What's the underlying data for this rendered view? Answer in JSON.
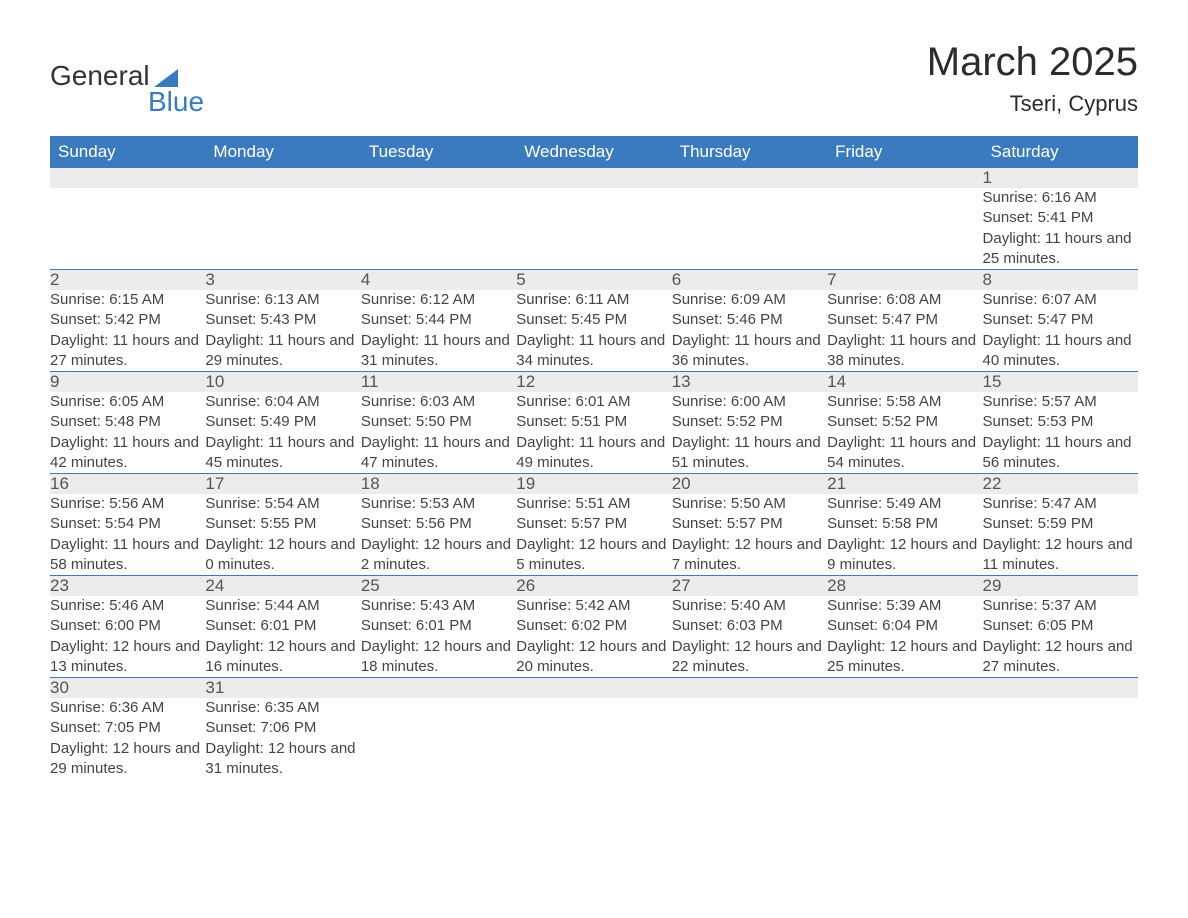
{
  "brand": {
    "word1": "General",
    "word2": "Blue",
    "accent_color": "#3a7bbf"
  },
  "title": "March 2025",
  "location": "Tseri, Cyprus",
  "day_headers": [
    "Sunday",
    "Monday",
    "Tuesday",
    "Wednesday",
    "Thursday",
    "Friday",
    "Saturday"
  ],
  "colors": {
    "header_bg": "#3a7bbf",
    "header_text": "#ffffff",
    "daynum_bg": "#ececec",
    "daynum_text": "#555555",
    "body_text": "#444444",
    "row_divider": "#3a7bbf",
    "page_bg": "#ffffff"
  },
  "typography": {
    "title_fontsize": 40,
    "location_fontsize": 22,
    "header_fontsize": 17,
    "daynum_fontsize": 17,
    "detail_fontsize": 15,
    "font_family": "Arial"
  },
  "weeks": [
    [
      null,
      null,
      null,
      null,
      null,
      null,
      {
        "n": "1",
        "sunrise": "6:16 AM",
        "sunset": "5:41 PM",
        "daylight": "11 hours and 25 minutes."
      }
    ],
    [
      {
        "n": "2",
        "sunrise": "6:15 AM",
        "sunset": "5:42 PM",
        "daylight": "11 hours and 27 minutes."
      },
      {
        "n": "3",
        "sunrise": "6:13 AM",
        "sunset": "5:43 PM",
        "daylight": "11 hours and 29 minutes."
      },
      {
        "n": "4",
        "sunrise": "6:12 AM",
        "sunset": "5:44 PM",
        "daylight": "11 hours and 31 minutes."
      },
      {
        "n": "5",
        "sunrise": "6:11 AM",
        "sunset": "5:45 PM",
        "daylight": "11 hours and 34 minutes."
      },
      {
        "n": "6",
        "sunrise": "6:09 AM",
        "sunset": "5:46 PM",
        "daylight": "11 hours and 36 minutes."
      },
      {
        "n": "7",
        "sunrise": "6:08 AM",
        "sunset": "5:47 PM",
        "daylight": "11 hours and 38 minutes."
      },
      {
        "n": "8",
        "sunrise": "6:07 AM",
        "sunset": "5:47 PM",
        "daylight": "11 hours and 40 minutes."
      }
    ],
    [
      {
        "n": "9",
        "sunrise": "6:05 AM",
        "sunset": "5:48 PM",
        "daylight": "11 hours and 42 minutes."
      },
      {
        "n": "10",
        "sunrise": "6:04 AM",
        "sunset": "5:49 PM",
        "daylight": "11 hours and 45 minutes."
      },
      {
        "n": "11",
        "sunrise": "6:03 AM",
        "sunset": "5:50 PM",
        "daylight": "11 hours and 47 minutes."
      },
      {
        "n": "12",
        "sunrise": "6:01 AM",
        "sunset": "5:51 PM",
        "daylight": "11 hours and 49 minutes."
      },
      {
        "n": "13",
        "sunrise": "6:00 AM",
        "sunset": "5:52 PM",
        "daylight": "11 hours and 51 minutes."
      },
      {
        "n": "14",
        "sunrise": "5:58 AM",
        "sunset": "5:52 PM",
        "daylight": "11 hours and 54 minutes."
      },
      {
        "n": "15",
        "sunrise": "5:57 AM",
        "sunset": "5:53 PM",
        "daylight": "11 hours and 56 minutes."
      }
    ],
    [
      {
        "n": "16",
        "sunrise": "5:56 AM",
        "sunset": "5:54 PM",
        "daylight": "11 hours and 58 minutes."
      },
      {
        "n": "17",
        "sunrise": "5:54 AM",
        "sunset": "5:55 PM",
        "daylight": "12 hours and 0 minutes."
      },
      {
        "n": "18",
        "sunrise": "5:53 AM",
        "sunset": "5:56 PM",
        "daylight": "12 hours and 2 minutes."
      },
      {
        "n": "19",
        "sunrise": "5:51 AM",
        "sunset": "5:57 PM",
        "daylight": "12 hours and 5 minutes."
      },
      {
        "n": "20",
        "sunrise": "5:50 AM",
        "sunset": "5:57 PM",
        "daylight": "12 hours and 7 minutes."
      },
      {
        "n": "21",
        "sunrise": "5:49 AM",
        "sunset": "5:58 PM",
        "daylight": "12 hours and 9 minutes."
      },
      {
        "n": "22",
        "sunrise": "5:47 AM",
        "sunset": "5:59 PM",
        "daylight": "12 hours and 11 minutes."
      }
    ],
    [
      {
        "n": "23",
        "sunrise": "5:46 AM",
        "sunset": "6:00 PM",
        "daylight": "12 hours and 13 minutes."
      },
      {
        "n": "24",
        "sunrise": "5:44 AM",
        "sunset": "6:01 PM",
        "daylight": "12 hours and 16 minutes."
      },
      {
        "n": "25",
        "sunrise": "5:43 AM",
        "sunset": "6:01 PM",
        "daylight": "12 hours and 18 minutes."
      },
      {
        "n": "26",
        "sunrise": "5:42 AM",
        "sunset": "6:02 PM",
        "daylight": "12 hours and 20 minutes."
      },
      {
        "n": "27",
        "sunrise": "5:40 AM",
        "sunset": "6:03 PM",
        "daylight": "12 hours and 22 minutes."
      },
      {
        "n": "28",
        "sunrise": "5:39 AM",
        "sunset": "6:04 PM",
        "daylight": "12 hours and 25 minutes."
      },
      {
        "n": "29",
        "sunrise": "5:37 AM",
        "sunset": "6:05 PM",
        "daylight": "12 hours and 27 minutes."
      }
    ],
    [
      {
        "n": "30",
        "sunrise": "6:36 AM",
        "sunset": "7:05 PM",
        "daylight": "12 hours and 29 minutes."
      },
      {
        "n": "31",
        "sunrise": "6:35 AM",
        "sunset": "7:06 PM",
        "daylight": "12 hours and 31 minutes."
      },
      null,
      null,
      null,
      null,
      null
    ]
  ],
  "labels": {
    "sunrise": "Sunrise: ",
    "sunset": "Sunset: ",
    "daylight": "Daylight: "
  }
}
